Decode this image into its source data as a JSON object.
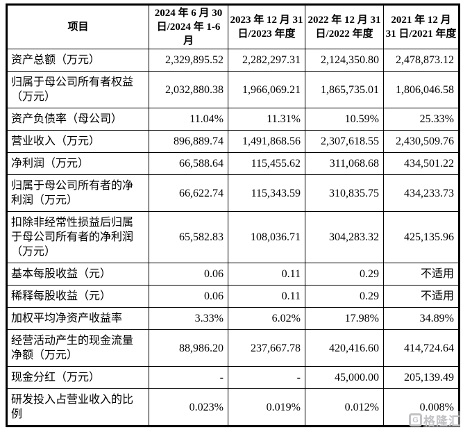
{
  "page": {
    "background_color": "#ffffff",
    "border_color": "#000000",
    "text_color": "#000000"
  },
  "watermark": {
    "logo_letter": "G",
    "text": "格隆汇",
    "color": "#c2c2c6"
  },
  "table": {
    "header": {
      "item_label": "项目",
      "periods": [
        "2024 年 6 月 30 日/2024 年 1-6 月",
        "2023 年 12 月 31 日/2023 年度",
        "2022 年 12 月 31 日/2022 年度",
        "2021 年 12 月 31 日/2021 年度"
      ]
    },
    "rows": [
      {
        "label": "资产总额（万元）",
        "values": [
          "2,329,895.52",
          "2,282,297.31",
          "2,124,350.80",
          "2,478,873.12"
        ]
      },
      {
        "label": "归属于母公司所有者权益（万元）",
        "values": [
          "2,032,880.38",
          "1,966,069.21",
          "1,865,735.01",
          "1,806,046.58"
        ]
      },
      {
        "label": "资产负债率（母公司）",
        "values": [
          "11.04%",
          "11.31%",
          "10.59%",
          "25.33%"
        ]
      },
      {
        "label": "营业收入（万元）",
        "values": [
          "896,889.74",
          "1,491,868.56",
          "2,307,618.55",
          "2,430,509.76"
        ]
      },
      {
        "label": "净利润（万元）",
        "values": [
          "66,588.64",
          "115,455.62",
          "311,068.68",
          "434,501.22"
        ]
      },
      {
        "label": "归属于母公司所有者的净利润（万元）",
        "values": [
          "66,622.74",
          "115,343.59",
          "310,835.75",
          "434,233.73"
        ]
      },
      {
        "label": "扣除非经常性损益后归属于母公司所有者的净利润（万元）",
        "values": [
          "65,582.83",
          "108,036.71",
          "304,283.32",
          "425,135.96"
        ]
      },
      {
        "label": "基本每股收益（元）",
        "values": [
          "0.06",
          "0.11",
          "0.29",
          "不适用"
        ]
      },
      {
        "label": "稀释每股收益（元）",
        "values": [
          "0.06",
          "0.11",
          "0.29",
          "不适用"
        ]
      },
      {
        "label": "加权平均净资产收益率",
        "values": [
          "3.33%",
          "6.02%",
          "17.98%",
          "34.89%"
        ]
      },
      {
        "label": "经营活动产生的现金流量净额（万元）",
        "values": [
          "88,986.20",
          "237,667.78",
          "420,416.60",
          "414,724.64"
        ]
      },
      {
        "label": "现金分红（万元）",
        "values": [
          "-",
          "-",
          "45,000.00",
          "205,139.49"
        ]
      },
      {
        "label": "研发投入占营业收入的比例",
        "values": [
          "0.023%",
          "0.019%",
          "0.012%",
          "0.008%"
        ]
      }
    ]
  }
}
